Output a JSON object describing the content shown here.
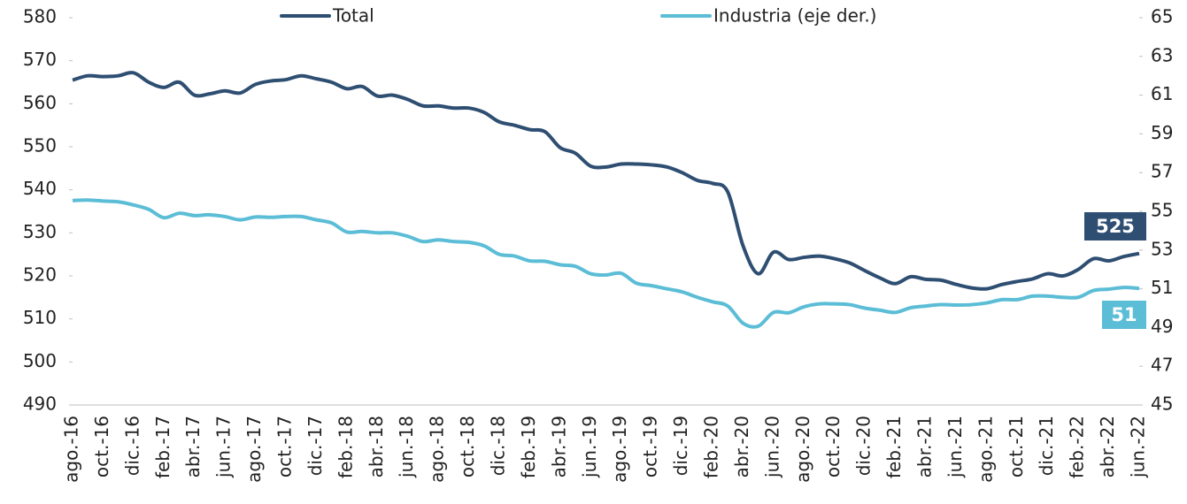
{
  "chart_data": {
    "type": "line",
    "categories": [
      "ago.-16",
      null,
      "oct.-16",
      null,
      "dic.-16",
      null,
      "feb.-17",
      null,
      "abr.-17",
      null,
      "jun.-17",
      null,
      "ago.-17",
      null,
      "oct.-17",
      null,
      "dic.-17",
      null,
      "feb.-18",
      null,
      "abr.-18",
      null,
      "jun.-18",
      null,
      "ago.-18",
      null,
      "oct.-18",
      null,
      "dic.-18",
      null,
      "feb.-19",
      null,
      "abr.-19",
      null,
      "jun.-19",
      null,
      "ago.-19",
      null,
      "oct.-19",
      null,
      "dic.-19",
      null,
      "feb.-20",
      null,
      "abr.-20",
      null,
      "jun.-20",
      null,
      "ago.-20",
      null,
      "oct.-20",
      null,
      "dic.-20",
      null,
      "feb.-21",
      null,
      "abr.-21",
      null,
      "jun.-21",
      null,
      "ago.-21",
      null,
      "oct.-21",
      null,
      "dic.-21",
      null,
      "feb.-22",
      null,
      "abr.-22",
      null,
      "jun.-22"
    ],
    "series": [
      {
        "name": "Total",
        "color": "#2e4e72",
        "values": [
          565.5,
          566.5,
          566.3,
          566.5,
          567.2,
          565,
          563.8,
          565,
          562,
          562.3,
          563,
          562.5,
          564.5,
          565.3,
          565.6,
          566.5,
          565.8,
          565,
          563.5,
          564,
          561.8,
          562,
          561,
          559.5,
          559.5,
          559,
          559,
          558,
          555.8,
          555,
          554,
          553.5,
          549.8,
          548.5,
          545.5,
          545.3,
          546,
          546,
          545.8,
          545.3,
          544,
          542.2,
          541.5,
          539.5,
          527,
          520.5,
          525.5,
          523.8,
          524.3,
          524.6,
          524,
          523,
          521.2,
          519.5,
          518.2,
          519.8,
          519.2,
          519,
          518,
          517.2,
          517,
          518,
          518.7,
          519.3,
          520.5,
          520,
          521.5,
          524,
          523.5,
          524.5,
          525.2
        ],
        "value_labels": {
          "70": "525"
        }
      },
      {
        "name": "Industria (eje der.)",
        "color": "#5bbdd6",
        "axis": "y2",
        "values": [
          55.56,
          55.58,
          55.53,
          55.49,
          55.33,
          55.1,
          54.67,
          54.9,
          54.78,
          54.82,
          54.73,
          54.56,
          54.71,
          54.69,
          54.73,
          54.73,
          54.56,
          54.4,
          53.93,
          53.96,
          53.89,
          53.89,
          53.71,
          53.44,
          53.53,
          53.44,
          53.4,
          53.22,
          52.78,
          52.69,
          52.44,
          52.42,
          52.24,
          52.16,
          51.78,
          51.71,
          51.8,
          51.29,
          51.16,
          51.0,
          50.84,
          50.56,
          50.33,
          50.11,
          49.22,
          49.07,
          49.78,
          49.76,
          50.07,
          50.22,
          50.22,
          50.18,
          50.0,
          49.89,
          49.78,
          50.02,
          50.11,
          50.18,
          50.16,
          50.18,
          50.27,
          50.44,
          50.44,
          50.62,
          50.62,
          50.56,
          50.56,
          50.91,
          50.98,
          51.07,
          51.02
        ],
        "value_labels": {
          "70": "51"
        }
      }
    ],
    "ylim": [
      490,
      580
    ],
    "yticks": [
      490,
      500,
      510,
      520,
      530,
      540,
      550,
      560,
      570,
      580
    ],
    "y2lim": [
      45,
      65
    ],
    "y2ticks": [
      45,
      47,
      49,
      51,
      53,
      55,
      57,
      59,
      61,
      63,
      65
    ],
    "legend": "top"
  }
}
